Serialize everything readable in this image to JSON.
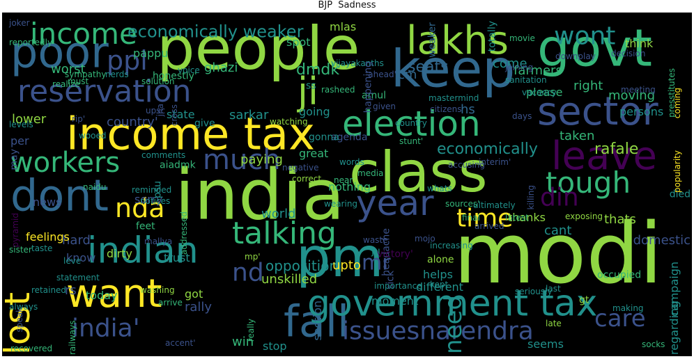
{
  "title": "BJP  Sadness",
  "background": "#000000",
  "palette": {
    "purple": "#440154",
    "indigo": "#3b528b",
    "blue": "#31688e",
    "teal": "#21918c",
    "green": "#35b779",
    "lime": "#90d743",
    "yellow": "#fde725"
  },
  "words": [
    {
      "text": "modi",
      "color": "lime",
      "rot": 0
    },
    {
      "text": "india",
      "color": "lime",
      "rot": 0
    },
    {
      "text": "people",
      "color": "lime",
      "rot": 0
    },
    {
      "text": "govt",
      "color": "green",
      "rot": 0
    },
    {
      "text": "class",
      "color": "lime",
      "rot": 0
    },
    {
      "text": "income tax",
      "color": "yellow",
      "rot": 0
    },
    {
      "text": "pm",
      "color": "teal",
      "rot": 0
    },
    {
      "text": "poor",
      "color": "blue",
      "rot": 0
    },
    {
      "text": "keep",
      "color": "blue",
      "rot": 0
    },
    {
      "text": "lakhs",
      "color": "lime",
      "rot": 0
    },
    {
      "text": "sector",
      "color": "indigo",
      "rot": 0
    },
    {
      "text": "election",
      "color": "green",
      "rot": 0
    },
    {
      "text": "reservation",
      "color": "indigo",
      "rot": 0
    },
    {
      "text": "leave",
      "color": "purple",
      "rot": 0
    },
    {
      "text": "dont",
      "color": "blue",
      "rot": 0
    },
    {
      "text": "ji",
      "color": "lime",
      "rot": 0
    },
    {
      "text": "wont",
      "color": "teal",
      "rot": 0
    },
    {
      "text": "indian",
      "color": "teal",
      "rot": 0
    },
    {
      "text": "fall",
      "color": "blue",
      "rot": 0
    },
    {
      "text": "want",
      "color": "yellow",
      "rot": 0
    },
    {
      "text": "government tax",
      "color": "teal",
      "rot": 0
    },
    {
      "text": "lost",
      "color": "yellow",
      "rot": -90
    },
    {
      "text": "talking",
      "color": "green",
      "rot": 0
    },
    {
      "text": "year",
      "color": "indigo",
      "rot": 0
    },
    {
      "text": "tough",
      "color": "green",
      "rot": 0
    },
    {
      "text": "much",
      "color": "indigo",
      "rot": 0
    },
    {
      "text": "workers",
      "color": "green",
      "rot": 0
    },
    {
      "text": "time",
      "color": "yellow",
      "rot": 0
    },
    {
      "text": "india'",
      "color": "indigo",
      "rot": 0
    },
    {
      "text": "issuesnarendra",
      "color": "indigo",
      "rot": 0
    },
    {
      "text": "care",
      "color": "indigo",
      "rot": 0
    },
    {
      "text": "nd",
      "color": "indigo",
      "rot": 0
    },
    {
      "text": "din",
      "color": "purple",
      "rot": 0
    },
    {
      "text": "need",
      "color": "teal",
      "rot": -90
    },
    {
      "text": "nda",
      "color": "yellow",
      "rot": 0
    },
    {
      "text": "mr",
      "color": "indigo",
      "rot": 0
    },
    {
      "text": "income",
      "color": "green",
      "rot": 0
    },
    {
      "text": "ppl",
      "color": "indigo",
      "rot": 0
    },
    {
      "text": "economically weaker",
      "color": "teal",
      "rot": 0
    },
    {
      "text": "economically",
      "color": "teal",
      "rot": 0
    },
    {
      "text": "rafale",
      "color": "lime",
      "rot": 0
    },
    {
      "text": "think",
      "color": "lime",
      "rot": 0
    },
    {
      "text": "right",
      "color": "green",
      "rot": 0
    },
    {
      "text": "moving",
      "color": "green",
      "rot": 0
    },
    {
      "text": "persons",
      "color": "teal",
      "rot": 0
    },
    {
      "text": "seats",
      "color": "blue",
      "rot": 0
    },
    {
      "text": "spot",
      "color": "green",
      "rot": 0
    },
    {
      "text": "mlas",
      "color": "lime",
      "rot": 0
    },
    {
      "text": "pappu",
      "color": "green",
      "rot": 0
    },
    {
      "text": "worst",
      "color": "green",
      "rot": 0
    },
    {
      "text": "ghazi",
      "color": "green",
      "rot": 0
    },
    {
      "text": "dmdk",
      "color": "green",
      "rot": 0
    },
    {
      "text": "cm",
      "color": "blue",
      "rot": 0
    },
    {
      "text": "come",
      "color": "teal",
      "rot": 0
    },
    {
      "text": "farmers",
      "color": "green",
      "rot": 0
    },
    {
      "text": "please",
      "color": "green",
      "rot": 0
    },
    {
      "text": "hs",
      "color": "blue",
      "rot": 0
    },
    {
      "text": "lower",
      "color": "lime",
      "rot": 0
    },
    {
      "text": "country'",
      "color": "indigo",
      "rot": 0
    },
    {
      "text": "state",
      "color": "teal",
      "rot": 0
    },
    {
      "text": "sarkar",
      "color": "teal",
      "rot": 0
    },
    {
      "text": "going",
      "color": "teal",
      "rot": 0
    },
    {
      "text": "paying",
      "color": "lime",
      "rot": 0
    },
    {
      "text": "per",
      "color": "indigo",
      "rot": 0
    },
    {
      "text": "may",
      "color": "indigo",
      "rot": -90
    },
    {
      "text": "taken",
      "color": "green",
      "rot": 0
    },
    {
      "text": "agenda",
      "color": "indigo",
      "rot": 0
    },
    {
      "text": "great",
      "color": "green",
      "rot": 0
    },
    {
      "text": "news",
      "color": "indigo",
      "rot": 0
    },
    {
      "text": "sorry",
      "color": "indigo",
      "rot": 0
    },
    {
      "text": "nothing",
      "color": "green",
      "rot": 0
    },
    {
      "text": "world",
      "color": "teal",
      "rot": 0
    },
    {
      "text": "hard",
      "color": "indigo",
      "rot": 0
    },
    {
      "text": "feelings",
      "color": "yellow",
      "rot": 0
    },
    {
      "text": "thanks",
      "color": "lime",
      "rot": 0
    },
    {
      "text": "cant",
      "color": "teal",
      "rot": 0
    },
    {
      "text": "dirty",
      "color": "lime",
      "rot": 0
    },
    {
      "text": "trust",
      "color": "teal",
      "rot": 0
    },
    {
      "text": "feet",
      "color": "green",
      "rot": 0
    },
    {
      "text": "know",
      "color": "indigo",
      "rot": 0
    },
    {
      "text": "opposition",
      "color": "teal",
      "rot": 0
    },
    {
      "text": "upto",
      "color": "yellow",
      "rot": 0
    },
    {
      "text": "unskilled",
      "color": "lime",
      "rot": 0
    },
    {
      "text": "rs",
      "color": "indigo",
      "rot": 0
    },
    {
      "text": "today",
      "color": "green",
      "rot": 0
    },
    {
      "text": "got",
      "color": "lime",
      "rot": 0
    },
    {
      "text": "rally",
      "color": "indigo",
      "rot": 0
    },
    {
      "text": "moment",
      "color": "teal",
      "rot": 0
    },
    {
      "text": "different",
      "color": "teal",
      "rot": 0
    },
    {
      "text": "helps",
      "color": "teal",
      "rot": 0
    },
    {
      "text": "alone",
      "color": "lime",
      "rot": 0
    },
    {
      "text": "win",
      "color": "green",
      "rot": 0
    },
    {
      "text": "stop",
      "color": "teal",
      "rot": 0
    },
    {
      "text": "seems",
      "color": "teal",
      "rot": 0
    },
    {
      "text": "domestic",
      "color": "indigo",
      "rot": 0
    },
    {
      "text": "thats",
      "color": "lime",
      "rot": 0
    },
    {
      "text": "campaign",
      "color": "teal",
      "rot": -90
    },
    {
      "text": "regarding",
      "color": "teal",
      "rot": -90
    },
    {
      "text": "section",
      "color": "blue",
      "rot": -90
    },
    {
      "text": "weaker",
      "color": "blue",
      "rot": -90
    },
    {
      "text": "totally",
      "color": "teal",
      "rot": -90
    },
    {
      "text": "movie",
      "color": "green",
      "rot": 0
    },
    {
      "text": "decision",
      "color": "indigo",
      "rot": 0
    },
    {
      "text": "downplay",
      "color": "indigo",
      "rot": 0
    },
    {
      "text": "joining",
      "color": "indigo",
      "rot": 0
    },
    {
      "text": "sanitation",
      "color": "teal",
      "rot": 0
    },
    {
      "text": "vacancy",
      "color": "teal",
      "rot": 0
    },
    {
      "text": "meeting",
      "color": "indigo",
      "rot": 0
    },
    {
      "text": "days",
      "color": "indigo",
      "rot": 0
    },
    {
      "text": "mastermind",
      "color": "teal",
      "rot": 0
    },
    {
      "text": "citizens",
      "color": "indigo",
      "rot": 0
    },
    {
      "text": "amul",
      "color": "green",
      "rot": 0
    },
    {
      "text": "given",
      "color": "indigo",
      "rot": 0
    },
    {
      "text": "rasheed",
      "color": "green",
      "rot": 0
    },
    {
      "text": "vijayakanths",
      "color": "teal",
      "rot": 0
    },
    {
      "text": "happening",
      "color": "indigo",
      "rot": -90
    },
    {
      "text": "'ahead'",
      "color": "indigo",
      "rot": 0
    },
    {
      "text": "voice",
      "color": "teal",
      "rot": 0
    },
    {
      "text": "honestly'",
      "color": "green",
      "rot": 0
    },
    {
      "text": "solution",
      "color": "green",
      "rot": 0
    },
    {
      "text": "sympathy",
      "color": "green",
      "rot": 0
    },
    {
      "text": "nerds",
      "color": "teal",
      "rot": 0
    },
    {
      "text": "must",
      "color": "green",
      "rot": 0
    },
    {
      "text": "realize",
      "color": "green",
      "rot": 0
    },
    {
      "text": "reportedly",
      "color": "green",
      "rot": 0
    },
    {
      "text": "ss",
      "color": "teal",
      "rot": 0
    },
    {
      "text": "upsc",
      "color": "indigo",
      "rot": 0
    },
    {
      "text": "jha",
      "color": "indigo",
      "rot": -90
    },
    {
      "text": "cross",
      "color": "indigo",
      "rot": -90
    },
    {
      "text": "rip'",
      "color": "indigo",
      "rot": 0
    },
    {
      "text": "levels",
      "color": "teal",
      "rot": 0
    },
    {
      "text": "wooed",
      "color": "teal",
      "rot": 0
    },
    {
      "text": "comments",
      "color": "teal",
      "rot": 0
    },
    {
      "text": "aiadmk",
      "color": "green",
      "rot": 0
    },
    {
      "text": "give",
      "color": "teal",
      "rot": 0
    },
    {
      "text": "watching",
      "color": "lime",
      "rot": 0
    },
    {
      "text": "gonna",
      "color": "teal",
      "rot": 0
    },
    {
      "text": "country",
      "color": "teal",
      "rot": 0
    },
    {
      "text": "stunt'",
      "color": "green",
      "rot": 0
    },
    {
      "text": "accusing",
      "color": "indigo",
      "rot": 0
    },
    {
      "text": "interim'",
      "color": "indigo",
      "rot": 0
    },
    {
      "text": "words",
      "color": "teal",
      "rot": 0
    },
    {
      "text": "negative",
      "color": "indigo",
      "rot": 0
    },
    {
      "text": "correct",
      "color": "lime",
      "rot": 0
    },
    {
      "text": "near",
      "color": "green",
      "rot": 0
    },
    {
      "text": "media",
      "color": "green",
      "rot": 0
    },
    {
      "text": "whats",
      "color": "teal",
      "rot": 0
    },
    {
      "text": "psu",
      "color": "teal",
      "rot": -90
    },
    {
      "text": "naidu",
      "color": "green",
      "rot": 0
    },
    {
      "text": "reminded",
      "color": "teal",
      "rot": 0
    },
    {
      "text": "notices",
      "color": "teal",
      "rot": 0
    },
    {
      "text": "wearing",
      "color": "teal",
      "rot": 0
    },
    {
      "text": "killing",
      "color": "indigo",
      "rot": -90
    },
    {
      "text": "sources'",
      "color": "green",
      "rot": 0
    },
    {
      "text": "ultimately",
      "color": "teal",
      "rot": 0
    },
    {
      "text": "final",
      "color": "green",
      "rot": 0
    },
    {
      "text": "latest",
      "color": "green",
      "rot": 0
    },
    {
      "text": "exposing",
      "color": "lime",
      "rot": 0
    },
    {
      "text": "died",
      "color": "teal",
      "rot": 0
    },
    {
      "text": "popularity",
      "color": "yellow",
      "rot": -90
    },
    {
      "text": "coming",
      "color": "yellow",
      "rot": -90
    },
    {
      "text": "presstitutes",
      "color": "green",
      "rot": -90
    },
    {
      "text": "pyramid",
      "color": "purple",
      "rot": -90
    },
    {
      "text": "addressed",
      "color": "green",
      "rot": -90
    },
    {
      "text": "waste",
      "color": "indigo",
      "rot": 0
    },
    {
      "text": "headache",
      "color": "indigo",
      "rot": -90
    },
    {
      "text": "mojo",
      "color": "indigo",
      "rot": 0
    },
    {
      "text": "ju",
      "color": "teal",
      "rot": 0
    },
    {
      "text": "increasing",
      "color": "teal",
      "rot": 0
    },
    {
      "text": "arrived",
      "color": "indigo",
      "rot": 0
    },
    {
      "text": "sister",
      "color": "green",
      "rot": 0
    },
    {
      "text": "taste",
      "color": "teal",
      "rot": 0
    },
    {
      "text": "mallya",
      "color": "indigo",
      "rot": 0
    },
    {
      "text": "leve",
      "color": "teal",
      "rot": 0
    },
    {
      "text": "mp'",
      "color": "lime",
      "rot": 0
    },
    {
      "text": "victory'",
      "color": "purple",
      "rot": 0
    },
    {
      "text": "sick",
      "color": "indigo",
      "rot": -90
    },
    {
      "text": "statement",
      "color": "teal",
      "rot": 0
    },
    {
      "text": "importance",
      "color": "teal",
      "rot": 0
    },
    {
      "text": "kept",
      "color": "teal",
      "rot": 0
    },
    {
      "text": "gt",
      "color": "lime",
      "rot": 0
    },
    {
      "text": "retained",
      "color": "teal",
      "rot": 0
    },
    {
      "text": "washing",
      "color": "lime",
      "rot": 0
    },
    {
      "text": "seriously",
      "color": "teal",
      "rot": 0
    },
    {
      "text": "last",
      "color": "teal",
      "rot": 0
    },
    {
      "text": "occupied",
      "color": "green",
      "rot": 0
    },
    {
      "text": "speak",
      "color": "indigo",
      "rot": -90
    },
    {
      "text": "railways",
      "color": "green",
      "rot": -90
    },
    {
      "text": "arrive",
      "color": "green",
      "rot": 0
    },
    {
      "text": "making",
      "color": "teal",
      "rot": 0
    },
    {
      "text": "always",
      "color": "teal",
      "rot": 0
    },
    {
      "text": "really",
      "color": "green",
      "rot": -90
    },
    {
      "text": "late",
      "color": "lime",
      "rot": 0
    },
    {
      "text": "recovered",
      "color": "green",
      "rot": 0
    },
    {
      "text": "accent'",
      "color": "indigo",
      "rot": 0
    },
    {
      "text": "socks",
      "color": "green",
      "rot": 0
    },
    {
      "text": "joker",
      "color": "indigo",
      "rot": 0
    }
  ]
}
